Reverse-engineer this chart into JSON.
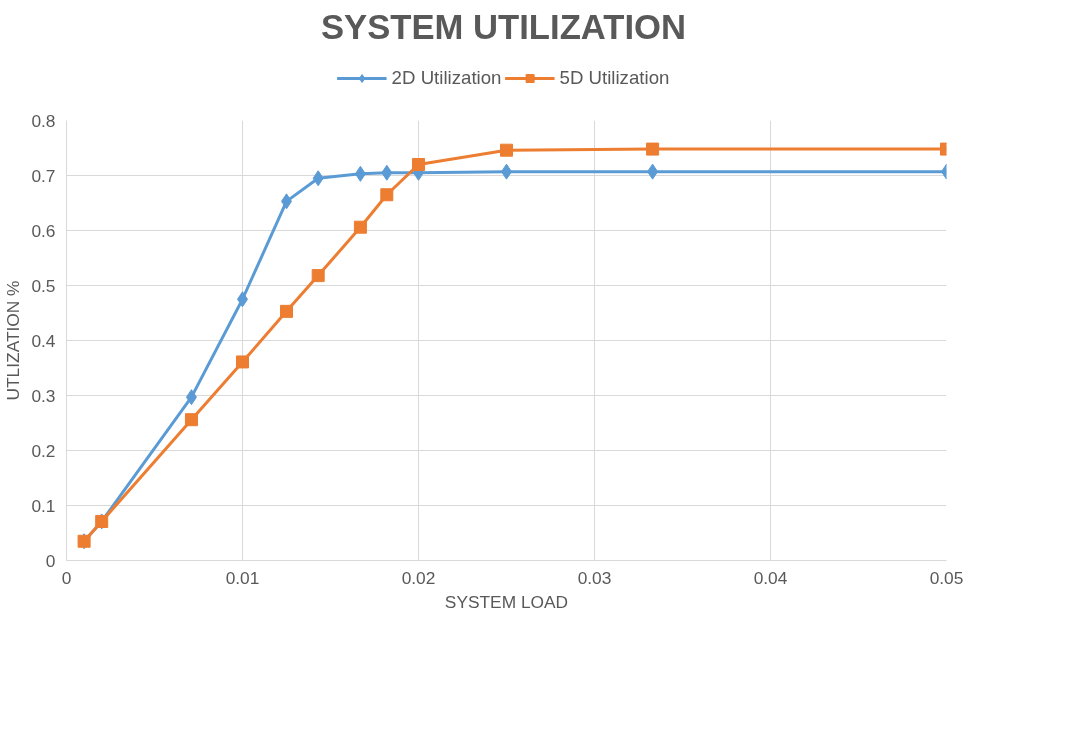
{
  "chart_data": {
    "type": "line",
    "title": "SYSTEM UTILIZATION",
    "xlabel": "SYSTEM LOAD",
    "ylabel": "UTLIZATION %",
    "x": [
      0.001,
      0.002,
      0.0071,
      0.01,
      0.0125,
      0.0143,
      0.0167,
      0.0182,
      0.02,
      0.025,
      0.0333,
      0.05
    ],
    "series": [
      {
        "name": "2D Utilization",
        "color": "#5b9bd5",
        "marker": "diamond",
        "values": [
          0.035,
          0.071,
          0.297,
          0.475,
          0.653,
          0.695,
          0.703,
          0.705,
          0.705,
          0.707,
          0.707,
          0.707
        ]
      },
      {
        "name": "5D Utilization",
        "color": "#ed7d31",
        "marker": "square",
        "values": [
          0.035,
          0.071,
          0.256,
          0.361,
          0.453,
          0.518,
          0.606,
          0.665,
          0.72,
          0.746,
          0.748,
          0.748
        ]
      }
    ],
    "xlim": [
      0,
      0.05
    ],
    "xticks": [
      0,
      0.01,
      0.02,
      0.03,
      0.04,
      0.05
    ],
    "ylim": [
      0,
      0.8
    ],
    "yticks": [
      0,
      0.1,
      0.2,
      0.3,
      0.4,
      0.5,
      0.6,
      0.7,
      0.8
    ],
    "grid": true,
    "legend": "top",
    "line_style": "solid"
  }
}
